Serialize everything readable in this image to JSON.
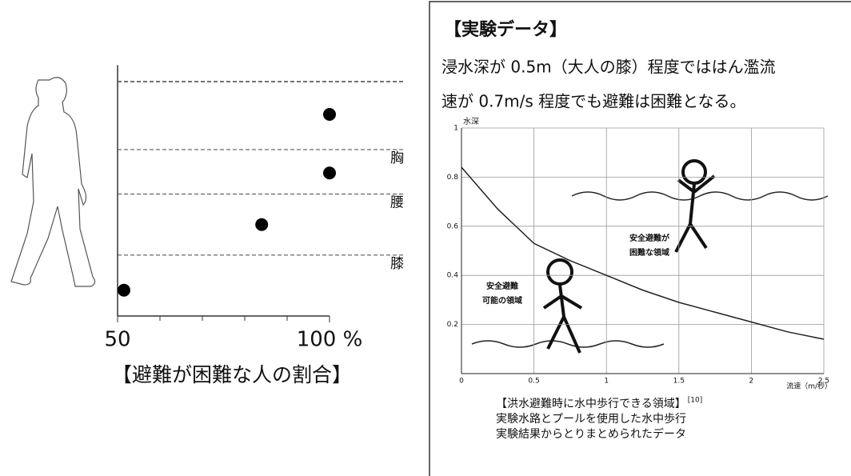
{
  "chart_data": [
    {
      "type": "scatter",
      "caption": "【避難が困難な人の割合】",
      "x": [
        51.5,
        84,
        100,
        100
      ],
      "values": [
        0.11,
        0.39,
        0.61,
        0.86
      ],
      "color": "#000000",
      "xlim": [
        50,
        100
      ],
      "ylim": [
        0,
        1.07
      ],
      "xticks": [
        50,
        {
          "value": 100,
          "label": "100 %"
        }
      ],
      "xminor": [
        60,
        70,
        80,
        90
      ],
      "hlines": [
        {
          "value": 1,
          "label": null
        },
        {
          "value": 0.71,
          "label": "胸"
        },
        {
          "value": 0.52,
          "label": "腰"
        },
        {
          "value": 0.26,
          "label": "膝"
        }
      ],
      "hline_label_color": "#1a2a6a"
    },
    {
      "type": "line",
      "ylabel": "水深",
      "xlabel": "流速（m/秒）",
      "x": [
        0,
        0.25,
        0.5,
        0.75,
        1,
        1.25,
        1.5,
        1.75,
        2,
        2.25,
        2.5
      ],
      "values": [
        0.84,
        0.67,
        0.53,
        0.46,
        0.4,
        0.34,
        0.29,
        0.25,
        0.21,
        0.17,
        0.14
      ],
      "color": "#222222",
      "xlim": [
        0,
        2.5
      ],
      "ylim": [
        0,
        1
      ],
      "xticks": [
        0,
        0.5,
        1,
        1.5,
        2,
        2.5
      ],
      "yticks": [
        0.2,
        0.4,
        0.6,
        0.8,
        1
      ],
      "grid": true,
      "annotations": [
        [
          "安全避難が",
          "困難な領域"
        ],
        [
          "安全避難",
          "可能の領域"
        ]
      ],
      "caption": [
        "【洪水避難時に水中歩行できる領域】",
        "実験水路とプールを使用した水中歩行",
        "実験結果からとりまとめられたデータ"
      ],
      "caption_ref": "[10]"
    }
  ],
  "document": {
    "title": "【実験データ】",
    "lines": [
      "浸水深が 0.5m（大人の膝）程度でははん濫流",
      "速が 0.7m/s 程度でも避難は困難となる。"
    ]
  }
}
